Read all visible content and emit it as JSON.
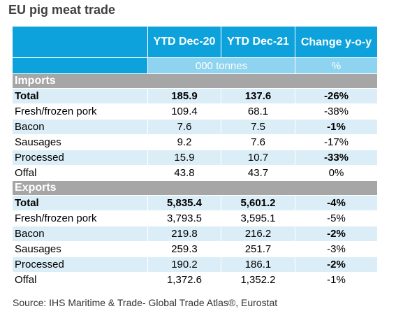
{
  "title": "EU pig meat trade",
  "header": {
    "col1": "YTD Dec-20",
    "col2": "YTD Dec-21",
    "col3": "Change y-o-y",
    "unit_main": "000 tonnes",
    "unit_change": "%"
  },
  "imports": {
    "label": "Imports",
    "rows": [
      {
        "name": "Total",
        "v20": "185.9",
        "v21": "137.6",
        "chg": "-26%"
      },
      {
        "name": "Fresh/frozen pork",
        "v20": "109.4",
        "v21": "68.1",
        "chg": "-38%"
      },
      {
        "name": "Bacon",
        "v20": "7.6",
        "v21": "7.5",
        "chg": "-1%"
      },
      {
        "name": "Sausages",
        "v20": "9.2",
        "v21": "7.6",
        "chg": "-17%"
      },
      {
        "name": "Processed",
        "v20": "15.9",
        "v21": "10.7",
        "chg": "-33%"
      },
      {
        "name": "Offal",
        "v20": "43.8",
        "v21": "43.7",
        "chg": "0%"
      }
    ]
  },
  "exports": {
    "label": "Exports",
    "rows": [
      {
        "name": "Total",
        "v20": "5,835.4",
        "v21": "5,601.2",
        "chg": "-4%"
      },
      {
        "name": "Fresh/frozen pork",
        "v20": "3,793.5",
        "v21": "3,595.1",
        "chg": "-5%"
      },
      {
        "name": "Bacon",
        "v20": "219.8",
        "v21": "216.2",
        "chg": "-2%"
      },
      {
        "name": "Sausages",
        "v20": "259.3",
        "v21": "251.7",
        "chg": "-3%"
      },
      {
        "name": "Processed",
        "v20": "190.2",
        "v21": "186.1",
        "chg": "-2%"
      },
      {
        "name": "Offal",
        "v20": "1,372.6",
        "v21": "1,352.2",
        "chg": "-1%"
      }
    ]
  },
  "source": "Source: IHS Maritime & Trade- Global Trade Atlas®, Eurostat",
  "colors": {
    "header_blue": "#0ea2dc",
    "unit_row_blue": "#8ed3f0",
    "section_grey": "#a6a6a6",
    "stripe_light_blue": "#dbeef7"
  }
}
